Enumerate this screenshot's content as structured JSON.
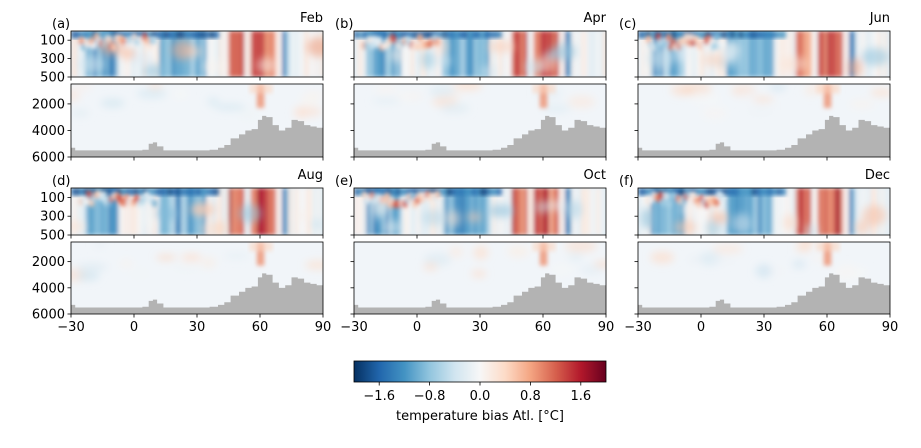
{
  "chart_data": {
    "type": "heatmap",
    "panels": [
      {
        "label": "(a)",
        "month": "Feb"
      },
      {
        "label": "(b)",
        "month": "Apr"
      },
      {
        "label": "(c)",
        "month": "Jun"
      },
      {
        "label": "(d)",
        "month": "Aug"
      },
      {
        "label": "(e)",
        "month": "Oct"
      },
      {
        "label": "(f)",
        "month": "Dec"
      }
    ],
    "x": {
      "range": [
        -30,
        90
      ],
      "ticks": [
        "−30",
        "0",
        "30",
        "60",
        "90"
      ],
      "tick_values": [
        -30,
        0,
        30,
        60,
        90
      ]
    },
    "y_upper": {
      "range": [
        0,
        500
      ],
      "inverted": true,
      "ticks": [
        "100",
        "300",
        "500"
      ],
      "tick_values": [
        100,
        300,
        500
      ]
    },
    "y_lower": {
      "range": [
        500,
        6000
      ],
      "inverted": true,
      "ticks": [
        "2000",
        "4000",
        "6000"
      ],
      "tick_values": [
        2000,
        4000,
        6000
      ]
    },
    "colorbar": {
      "label": "temperature bias Atl. [$^o$C]",
      "label_display": "temperature bias Atl. [°C]",
      "range": [
        -2.0,
        2.0
      ],
      "ticks": [
        "−1.6",
        "−0.8",
        "0.0",
        "0.8",
        "1.6"
      ],
      "tick_values": [
        -1.6,
        -0.8,
        0.0,
        0.8,
        1.6
      ],
      "colormap": "RdBu_r"
    },
    "bathymetry_color": "#b3b3b3",
    "bathymetry_depth": [
      [
        -30,
        5300
      ],
      [
        -28,
        5500
      ],
      [
        -20,
        5500
      ],
      [
        0,
        5500
      ],
      [
        4,
        5450
      ],
      [
        7,
        5000
      ],
      [
        9,
        4900
      ],
      [
        11,
        5200
      ],
      [
        14,
        5500
      ],
      [
        30,
        5500
      ],
      [
        36,
        5450
      ],
      [
        40,
        5300
      ],
      [
        43,
        5100
      ],
      [
        46,
        4600
      ],
      [
        50,
        4300
      ],
      [
        53,
        4000
      ],
      [
        56,
        3900
      ],
      [
        59,
        3200
      ],
      [
        61,
        2900
      ],
      [
        63,
        3000
      ],
      [
        66,
        3600
      ],
      [
        69,
        4000
      ],
      [
        72,
        3800
      ],
      [
        75,
        3200
      ],
      [
        78,
        3300
      ],
      [
        81,
        3600
      ],
      [
        84,
        3700
      ],
      [
        87,
        3800
      ],
      [
        90,
        3800
      ]
    ],
    "features": {
      "warm_columns": [
        [
          44,
          52
        ],
        [
          55,
          66
        ]
      ],
      "cold_columns": [
        [
          -24,
          -8
        ],
        [
          12,
          33
        ],
        [
          69,
          72
        ]
      ],
      "mixed_band_x": [
        -25,
        10
      ],
      "surface_cold_depth": 80
    }
  }
}
